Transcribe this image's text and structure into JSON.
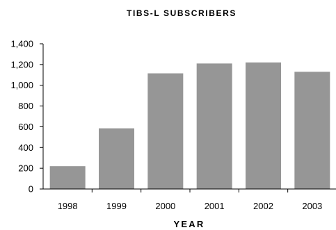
{
  "chart_data": {
    "type": "bar",
    "title": "TIBS-L SUBSCRIBERS",
    "xlabel": "YEAR",
    "ylabel": "",
    "categories": [
      "1998",
      "1999",
      "2000",
      "2001",
      "2002",
      "2003"
    ],
    "values": [
      220,
      585,
      1115,
      1210,
      1220,
      1130
    ],
    "ylim": [
      0,
      1400
    ],
    "yticks": [
      0,
      200,
      400,
      600,
      800,
      1000,
      1200,
      1400
    ],
    "ytick_labels": [
      "0",
      "200",
      "400",
      "600",
      "800",
      "1,000",
      "1,200",
      "1,400"
    ],
    "grid": false,
    "legend": "none",
    "bar_color": "#969696",
    "axis_color": "#000000"
  }
}
